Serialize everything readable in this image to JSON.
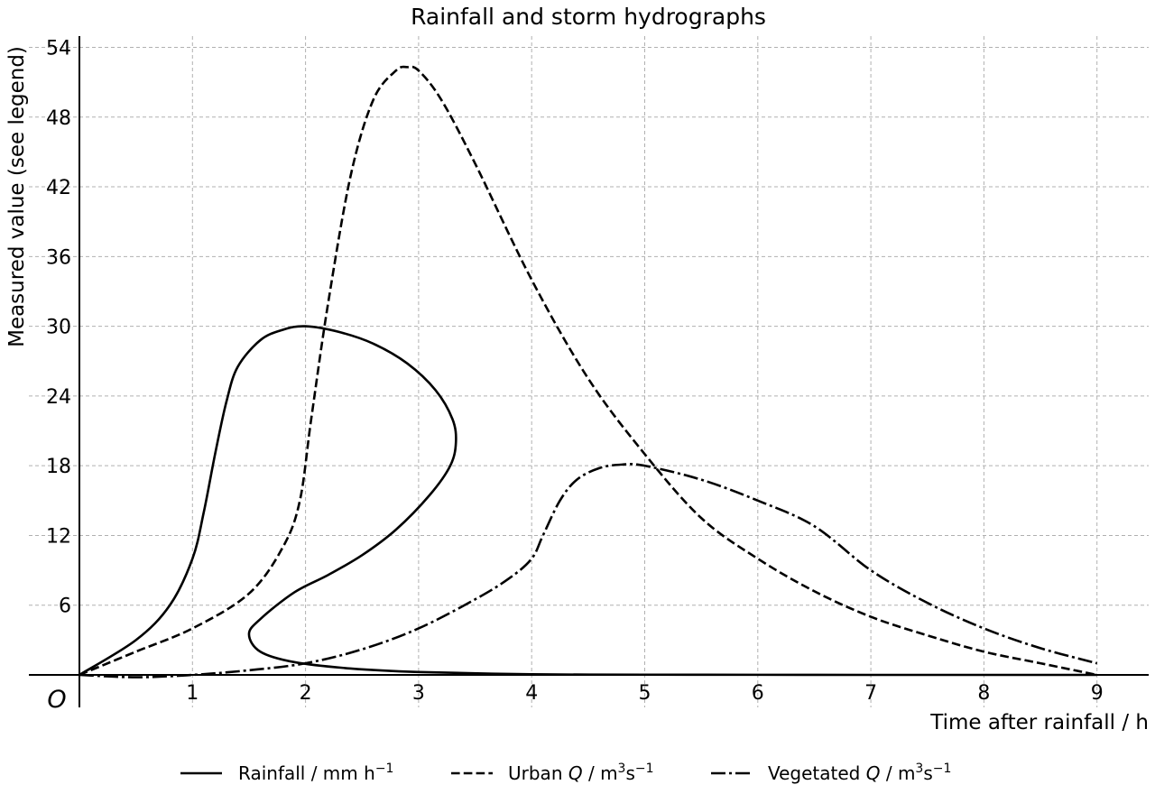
{
  "chart_data": {
    "type": "line",
    "title": "Rainfall and storm hydrographs",
    "xlabel": "Time after rainfall / h",
    "ylabel": "Measured value (see legend)",
    "origin_label": "O",
    "xlim": [
      0,
      9.45
    ],
    "ylim": [
      -4.5,
      55.5
    ],
    "x_ticks": [
      1,
      2,
      3,
      4,
      5,
      6,
      7,
      8,
      9
    ],
    "y_ticks": [
      6,
      12,
      18,
      24,
      30,
      36,
      42,
      48,
      54
    ],
    "grid": true,
    "legend_position": "bottom-center",
    "series": [
      {
        "name": "Rainfall / mm h⁻¹",
        "legend": {
          "main": "Rainfall / mm h",
          "sup": "−1"
        },
        "dash": "solid",
        "x": [
          0,
          0.5,
          0.8,
          1.0,
          1.1,
          1.2,
          1.3,
          1.4,
          1.6,
          1.8,
          2.0,
          2.3,
          2.6,
          2.9,
          3.15,
          3.3,
          3.33,
          3.28,
          3.1,
          2.8,
          2.5,
          2.2,
          1.9,
          1.6,
          1.5,
          1.6,
          1.9,
          2.4,
          3.0,
          4.0,
          5.0,
          6.0,
          7.0,
          8.0,
          9.0
        ],
        "y": [
          0,
          3,
          6,
          10,
          14,
          19,
          23.5,
          26.5,
          28.8,
          29.7,
          30,
          29.5,
          28.5,
          26.8,
          24.5,
          22,
          20,
          18,
          15.5,
          12.5,
          10.3,
          8.6,
          7.1,
          4.8,
          3.5,
          2.0,
          1.1,
          0.55,
          0.25,
          0.05,
          0.02,
          0.01,
          0,
          0,
          0
        ]
      },
      {
        "name": "Urban Q / m³s⁻¹",
        "legend": {
          "main": "Urban ",
          "italic": "Q",
          "rest": " / m",
          "sup1": "3",
          "mid": "s",
          "sup2": "−1"
        },
        "dash": "dashed",
        "x": [
          0,
          0.5,
          1.0,
          1.5,
          1.8,
          1.95,
          2.05,
          2.2,
          2.4,
          2.6,
          2.8,
          2.9,
          3.0,
          3.2,
          3.5,
          4.0,
          4.5,
          5.0,
          5.5,
          6.0,
          6.5,
          7.0,
          7.5,
          8.0,
          8.5,
          9.0
        ],
        "y": [
          0,
          2,
          4,
          7,
          11,
          15,
          22,
          32,
          43,
          49.5,
          52,
          52.3,
          52,
          49.5,
          44,
          34,
          25.5,
          19,
          13.5,
          10,
          7.2,
          5,
          3.4,
          2,
          1,
          0
        ]
      },
      {
        "name": "Vegetated Q / m³s⁻¹",
        "legend": {
          "main": "Vegetated ",
          "italic": "Q",
          "rest": " / m",
          "sup1": "3",
          "mid": "s",
          "sup2": "−1"
        },
        "dash": "dashdot",
        "x": [
          0,
          0.5,
          1.0,
          1.5,
          2.0,
          2.5,
          3.0,
          3.5,
          3.8,
          4.0,
          4.1,
          4.25,
          4.4,
          4.6,
          4.8,
          5.0,
          5.5,
          6.0,
          6.5,
          7.0,
          7.5,
          8.0,
          8.5,
          9.0
        ],
        "y": [
          0,
          -0.2,
          0,
          0.4,
          1.0,
          2.2,
          4.0,
          6.5,
          8.3,
          10,
          12,
          15,
          16.8,
          17.8,
          18.1,
          18,
          16.8,
          15,
          12.8,
          9,
          6.2,
          4,
          2.3,
          1
        ]
      }
    ]
  }
}
